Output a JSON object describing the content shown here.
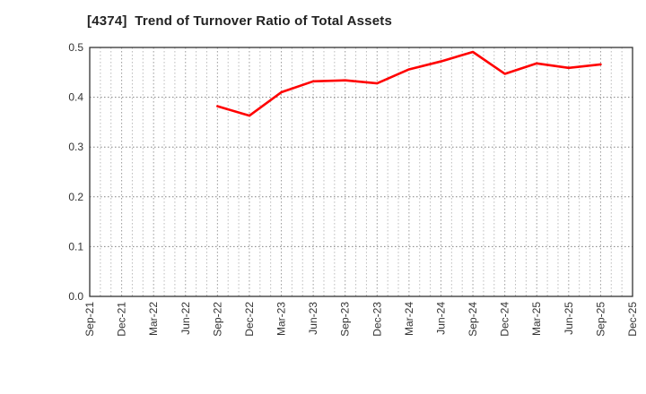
{
  "page": {
    "background": "#ffffff"
  },
  "header": {
    "title": "[4374]  Trend of Turnover Ratio of Total Assets"
  },
  "chart_data": {
    "type": "line",
    "title": "[4374]  Trend of Turnover Ratio of Total Assets",
    "title_color": "#222222",
    "background": "#ffffff",
    "border_color": "#333333",
    "grid_color_horizontal": "#808080",
    "grid_color_major_vertical": "#999999",
    "grid_color_minor_vertical": "#bbbbbb",
    "legend": "none",
    "ylim": [
      0.0,
      0.5
    ],
    "y_tick_labels": [
      "0.0",
      "0.1",
      "0.2",
      "0.3",
      "0.4",
      "0.5"
    ],
    "y_ticks": [
      0.0,
      0.1,
      0.2,
      0.3,
      0.4,
      0.5
    ],
    "x_tick_labels": [
      "Sep-21",
      "Dec-21",
      "Mar-22",
      "Jun-22",
      "Sep-22",
      "Dec-22",
      "Mar-23",
      "Jun-23",
      "Sep-23",
      "Dec-23",
      "Mar-24",
      "Jun-24",
      "Sep-24",
      "Dec-24",
      "Mar-25",
      "Jun-25",
      "Sep-25",
      "Dec-25"
    ],
    "series": [
      {
        "name": "Turnover Ratio of Total Assets",
        "color": "#ff0000",
        "points": [
          {
            "x": "Sep-22",
            "y": 0.382
          },
          {
            "x": "Dec-22",
            "y": 0.363
          },
          {
            "x": "Mar-23",
            "y": 0.41
          },
          {
            "x": "Jun-23",
            "y": 0.432
          },
          {
            "x": "Sep-23",
            "y": 0.434
          },
          {
            "x": "Dec-23",
            "y": 0.428
          },
          {
            "x": "Mar-24",
            "y": 0.456
          },
          {
            "x": "Jun-24",
            "y": 0.472
          },
          {
            "x": "Sep-24",
            "y": 0.491
          },
          {
            "x": "Dec-24",
            "y": 0.447
          },
          {
            "x": "Mar-25",
            "y": 0.468
          },
          {
            "x": "Jun-25",
            "y": 0.459
          },
          {
            "x": "Sep-25",
            "y": 0.466
          }
        ]
      }
    ]
  }
}
